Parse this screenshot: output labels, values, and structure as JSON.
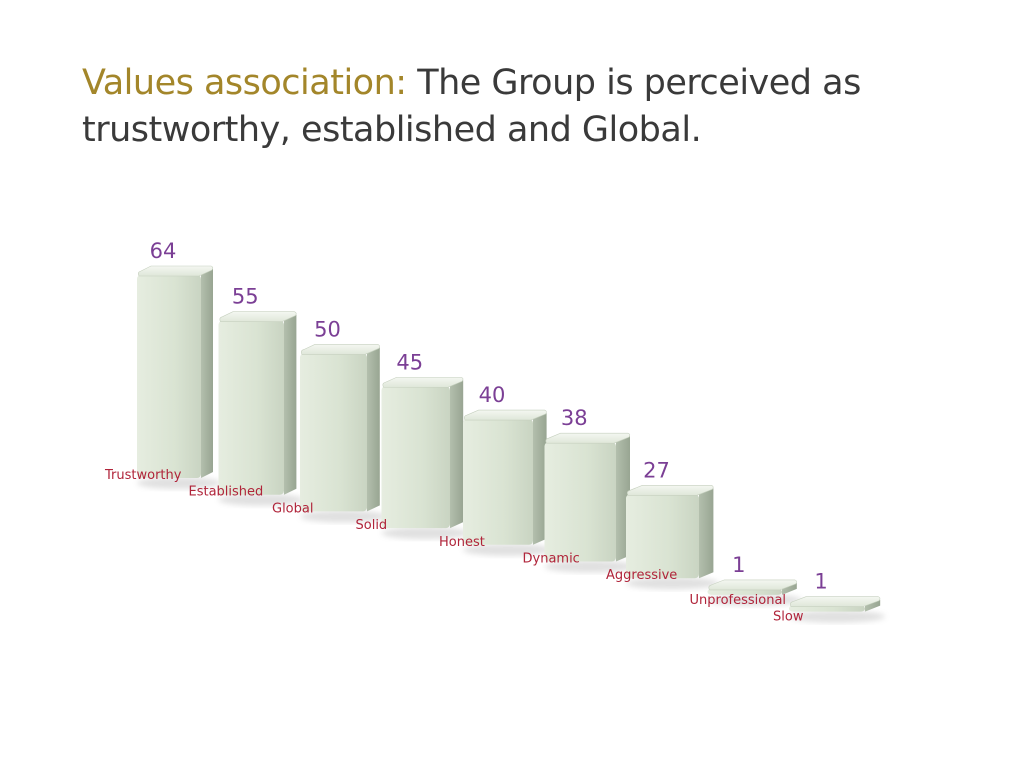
{
  "title": {
    "lead": "Values association:",
    "rest": " The Group is perceived as trustworthy, established and Global."
  },
  "colors": {
    "title_lead": "#a3862a",
    "title_text": "#3a3a3a",
    "value_labels": "#7b3f95",
    "category_labels": "#b0243a",
    "bar_front": "#dde6d6",
    "bar_side": "#b9c4b3",
    "bar_top": "#eef2ea"
  },
  "chart_data": {
    "type": "bar",
    "style": "3d-perspective",
    "categories": [
      "Trustworthy",
      "Established",
      "Global",
      "Solid",
      "Honest",
      "Dynamic",
      "Aggressive",
      "Unprofessional",
      "Slow"
    ],
    "values": [
      64,
      55,
      50,
      45,
      40,
      38,
      27,
      1,
      1
    ],
    "title": "",
    "xlabel": "",
    "ylabel": "",
    "grid": false,
    "legend": "none"
  }
}
